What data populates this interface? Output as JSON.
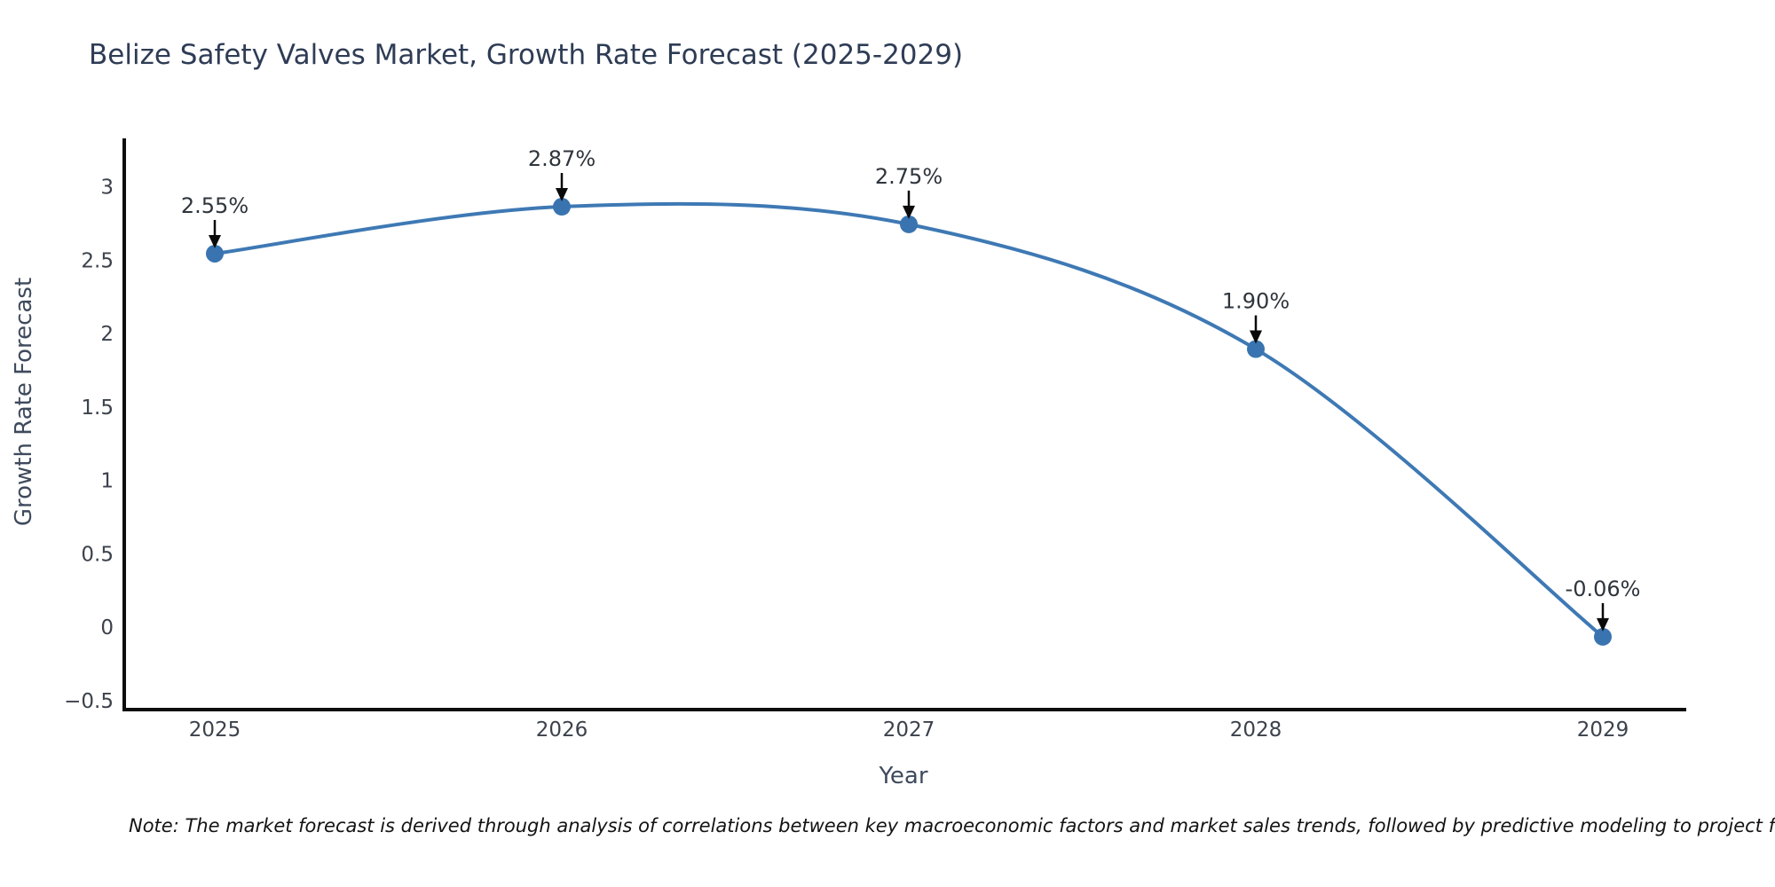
{
  "header": {
    "title": "Belize Safety Valves Market, Growth Rate Forecast (2025-2029)"
  },
  "note": {
    "text": "Note: The market forecast is derived through analysis of correlations between key macroeconomic factors and market sales trends, followed by predictive modeling to project future sales."
  },
  "chart_data": {
    "type": "line",
    "title": "Belize Safety Valves Market, Growth Rate Forecast (2025-2029)",
    "xlabel": "Year",
    "ylabel": "Growth Rate Forecast",
    "x": [
      2025,
      2026,
      2027,
      2028,
      2029
    ],
    "series": [
      {
        "name": "Growth Rate Forecast",
        "values": [
          2.55,
          2.87,
          2.75,
          1.9,
          -0.06
        ]
      }
    ],
    "point_labels": [
      "2.55%",
      "2.87%",
      "2.75%",
      "1.90%",
      "-0.06%"
    ],
    "xtick_labels": [
      "2025",
      "2026",
      "2027",
      "2028",
      "2029"
    ],
    "yticks": [
      {
        "label": "3",
        "v": 3.0
      },
      {
        "label": "2.5",
        "v": 2.5
      },
      {
        "label": "2",
        "v": 2.0
      },
      {
        "label": "1.5",
        "v": 1.5
      },
      {
        "label": "1",
        "v": 1.0
      },
      {
        "label": "0.5",
        "v": 0.5
      },
      {
        "label": "0",
        "v": 0.0
      },
      {
        "label": "−0.5",
        "v": -0.5
      }
    ],
    "ylim": [
      -0.56,
      3.34
    ],
    "grid": false,
    "legend": "none",
    "colors": {
      "line": "#3e79b4",
      "marker": "#3a74b0",
      "axis": "#0d0d0d",
      "arrow": "#0a0a0a",
      "annotation_text": "#2f353c",
      "tick_text": "#3c424c"
    }
  }
}
